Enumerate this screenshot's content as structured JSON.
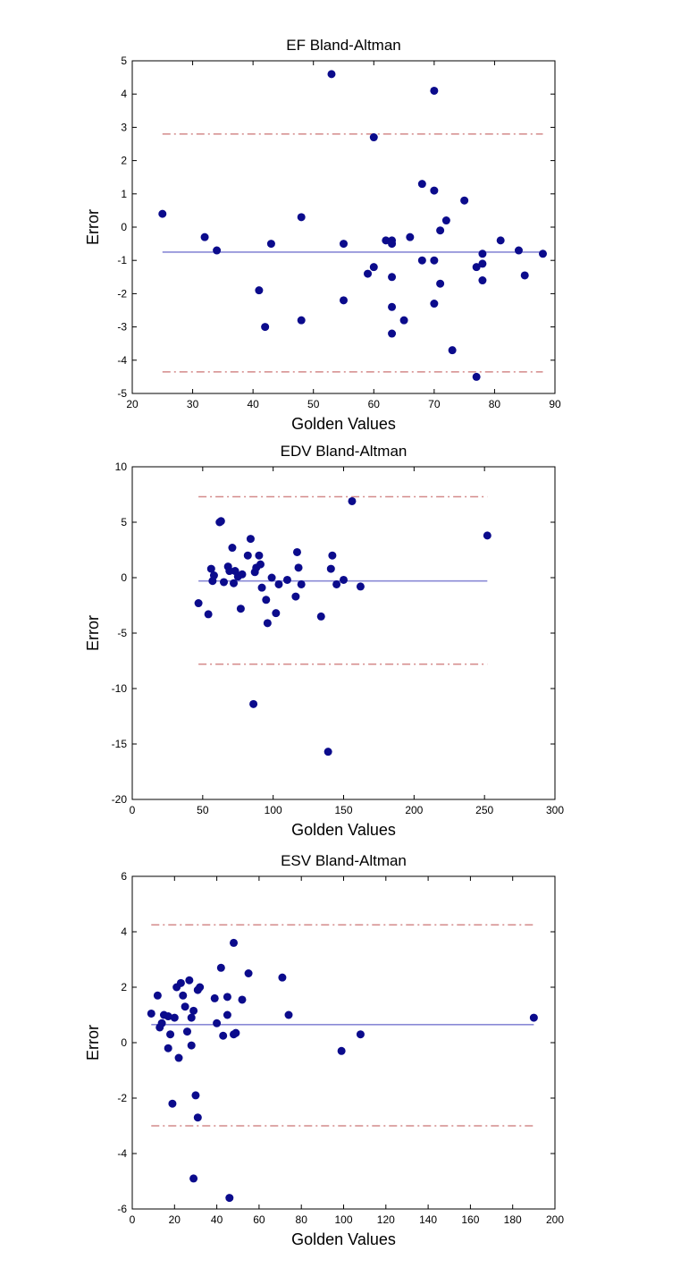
{
  "colors": {
    "point": "#0b0b8c",
    "mean_line": "#8a8ad6",
    "limit_line": "#d48b8b",
    "axes": "#000000",
    "background": "#ffffff"
  },
  "chart_data": [
    {
      "type": "scatter",
      "title": "EF Bland-Altman",
      "xlabel": "Golden Values",
      "ylabel": "Error",
      "xlim": [
        20,
        90
      ],
      "ylim": [
        -5,
        5
      ],
      "xticks": [
        20,
        30,
        40,
        50,
        60,
        70,
        80,
        90
      ],
      "yticks": [
        -5,
        -4,
        -3,
        -2,
        -1,
        0,
        1,
        2,
        3,
        4,
        5
      ],
      "grid": false,
      "mean_line": {
        "y": -0.75,
        "x_range": [
          25,
          88
        ]
      },
      "limit_lines": [
        2.8,
        -4.35
      ],
      "series": [
        {
          "x": [
            25,
            32,
            34,
            41,
            42,
            43,
            48,
            48,
            53,
            55,
            55,
            59,
            60,
            60,
            62,
            63,
            63,
            63,
            63,
            63,
            65,
            66,
            68,
            68,
            70,
            70,
            70,
            70,
            71,
            71,
            72,
            73,
            75,
            77,
            77,
            78,
            78,
            78,
            81,
            84,
            85,
            88
          ],
          "y": [
            0.4,
            -0.3,
            -0.7,
            -1.9,
            -3.0,
            -0.5,
            0.3,
            -2.8,
            4.6,
            -0.5,
            -2.2,
            -1.4,
            2.7,
            -1.2,
            -0.4,
            -0.4,
            -0.5,
            -1.5,
            -2.4,
            -3.2,
            -2.8,
            -0.3,
            1.3,
            -1.0,
            4.1,
            1.1,
            -1.0,
            -2.3,
            -0.1,
            -1.7,
            0.2,
            -3.7,
            0.8,
            -1.2,
            -4.5,
            -1.1,
            -0.8,
            -1.6,
            -0.4,
            -0.7,
            -1.45,
            -0.8
          ]
        }
      ]
    },
    {
      "type": "scatter",
      "title": "EDV Bland-Altman",
      "xlabel": "Golden Values",
      "ylabel": "Error",
      "xlim": [
        0,
        300
      ],
      "ylim": [
        -20,
        10
      ],
      "xticks": [
        0,
        50,
        100,
        150,
        200,
        250,
        300
      ],
      "yticks": [
        -20,
        -15,
        -10,
        -5,
        0,
        5,
        10
      ],
      "grid": false,
      "mean_line": {
        "y": -0.3,
        "x_range": [
          47,
          252
        ]
      },
      "limit_lines": [
        7.3,
        -7.8
      ],
      "series": [
        {
          "x": [
            47,
            54,
            56,
            57,
            58,
            62,
            63,
            65,
            68,
            69,
            71,
            72,
            73,
            75,
            77,
            78,
            82,
            84,
            86,
            87,
            88,
            90,
            91,
            92,
            95,
            96,
            99,
            102,
            104,
            110,
            116,
            117,
            118,
            120,
            134,
            139,
            141,
            142,
            145,
            150,
            156,
            162,
            252
          ],
          "y": [
            -2.3,
            -3.3,
            0.8,
            -0.3,
            0.2,
            5.0,
            5.1,
            -0.4,
            1.0,
            0.6,
            2.7,
            -0.5,
            0.6,
            0.1,
            -2.8,
            0.3,
            2.0,
            3.5,
            -11.4,
            0.5,
            0.9,
            2.0,
            1.2,
            -0.9,
            -2.0,
            -4.1,
            0.0,
            -3.2,
            -0.6,
            -0.2,
            -1.7,
            2.3,
            0.9,
            -0.6,
            -3.5,
            -15.7,
            0.8,
            2.0,
            -0.6,
            -0.2,
            6.9,
            -0.8,
            3.8
          ]
        }
      ]
    },
    {
      "type": "scatter",
      "title": "ESV Bland-Altman",
      "xlabel": "Golden Values",
      "ylabel": "Error",
      "xlim": [
        0,
        200
      ],
      "ylim": [
        -6,
        6
      ],
      "xticks": [
        0,
        20,
        40,
        60,
        80,
        100,
        120,
        140,
        160,
        180,
        200
      ],
      "yticks": [
        -6,
        -4,
        -2,
        0,
        2,
        4,
        6
      ],
      "grid": false,
      "mean_line": {
        "y": 0.65,
        "x_range": [
          9,
          190
        ]
      },
      "limit_lines": [
        4.25,
        -3.0
      ],
      "series": [
        {
          "x": [
            9,
            12,
            13,
            14,
            15,
            17,
            17,
            18,
            19,
            20,
            21,
            22,
            23,
            24,
            25,
            26,
            27,
            28,
            28,
            29,
            29,
            30,
            31,
            31,
            32,
            39,
            40,
            42,
            43,
            45,
            45,
            46,
            48,
            48,
            49,
            52,
            55,
            71,
            74,
            99,
            108,
            190
          ],
          "y": [
            1.05,
            1.7,
            0.55,
            0.7,
            1.0,
            0.95,
            -0.2,
            0.3,
            -2.2,
            0.9,
            2.0,
            -0.55,
            2.15,
            1.7,
            1.3,
            0.4,
            2.25,
            0.9,
            -0.1,
            -4.9,
            1.15,
            -1.9,
            -2.7,
            1.9,
            2.0,
            1.6,
            0.7,
            2.7,
            0.25,
            1.65,
            1.0,
            -5.6,
            3.6,
            0.3,
            0.35,
            1.55,
            2.5,
            2.35,
            1.0,
            -0.3,
            0.3,
            0.9
          ]
        }
      ]
    }
  ]
}
